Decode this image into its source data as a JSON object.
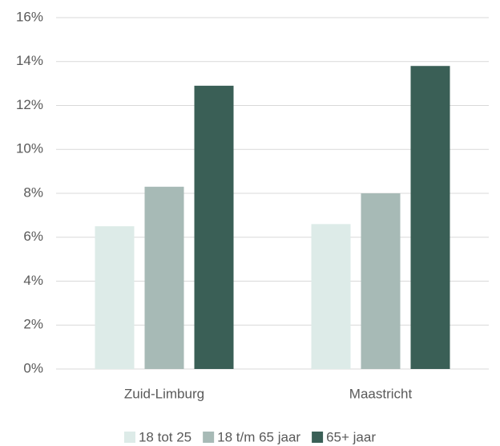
{
  "chart_data": {
    "type": "bar",
    "categories": [
      "Zuid-Limburg",
      "Maastricht"
    ],
    "series": [
      {
        "name": "18 tot 25",
        "color": "#ddebe8",
        "values": [
          6.5,
          6.6
        ]
      },
      {
        "name": "18 t/m 65 jaar",
        "color": "#a7bab6",
        "values": [
          8.3,
          8.0
        ]
      },
      {
        "name": "65+ jaar",
        "color": "#3a5f56",
        "values": [
          12.9,
          13.8
        ]
      }
    ],
    "ylim": [
      0,
      16
    ],
    "yticks": [
      {
        "value": 0,
        "label": "0%"
      },
      {
        "value": 2,
        "label": "2%"
      },
      {
        "value": 4,
        "label": "4%"
      },
      {
        "value": 6,
        "label": "6%"
      },
      {
        "value": 8,
        "label": "8%"
      },
      {
        "value": 10,
        "label": "10%"
      },
      {
        "value": 12,
        "label": "12%"
      },
      {
        "value": 14,
        "label": "14%"
      },
      {
        "value": 16,
        "label": "16%"
      }
    ],
    "grid": true,
    "legend": "bottom"
  }
}
